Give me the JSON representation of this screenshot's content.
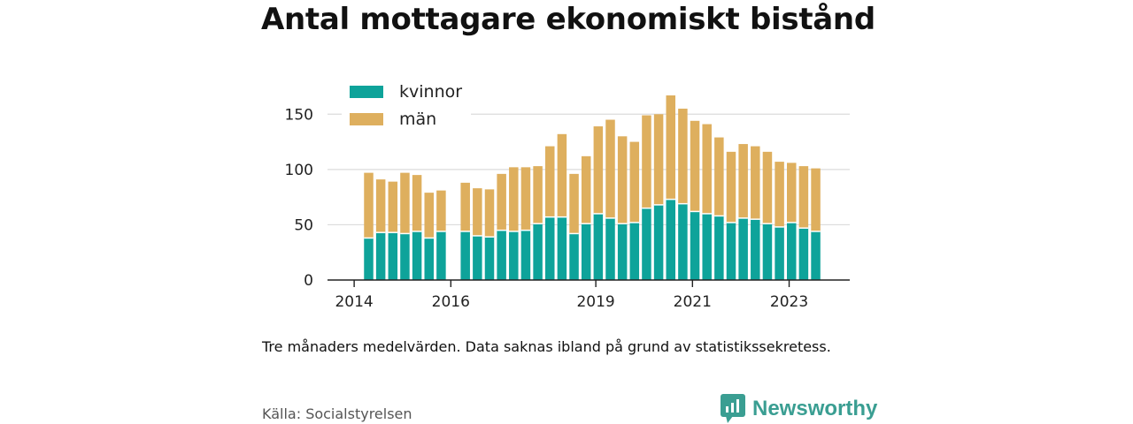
{
  "chart_data": {
    "type": "bar",
    "stacked": true,
    "title": "Antal mottagare ekonomiskt bistånd",
    "xlabel": "",
    "ylabel": "",
    "ylim": [
      0,
      175
    ],
    "yticks": [
      0,
      50,
      100,
      150
    ],
    "xticks": [
      "2014",
      "2016",
      "2019",
      "2021",
      "2023"
    ],
    "grid": true,
    "legend_position": "top-left",
    "series": [
      {
        "name": "kvinnor",
        "color": "#0ea39a",
        "values": [
          38,
          43,
          43,
          42,
          44,
          38,
          44,
          null,
          44,
          40,
          39,
          45,
          44,
          45,
          51,
          57,
          57,
          42,
          51,
          60,
          56,
          51,
          52,
          65,
          68,
          73,
          69,
          62,
          60,
          58,
          52,
          56,
          55,
          51,
          48,
          52,
          47,
          44
        ]
      },
      {
        "name": "män",
        "color": "#deaf5e",
        "values": [
          59,
          48,
          46,
          55,
          51,
          41,
          37,
          null,
          44,
          43,
          43,
          51,
          58,
          57,
          52,
          64,
          75,
          54,
          61,
          79,
          89,
          79,
          73,
          84,
          82,
          94,
          86,
          82,
          81,
          71,
          64,
          67,
          66,
          65,
          59,
          54,
          56,
          57
        ]
      }
    ]
  },
  "note": "Tre månaders medelvärden. Data saknas ibland på grund av statistikssekretess.",
  "source": "Källa: Socialstyrelsen",
  "brand": "Newsworthy",
  "colors": {
    "brand": "#3a9e92",
    "axis": "#222222",
    "grid": "#dcdcdc"
  }
}
